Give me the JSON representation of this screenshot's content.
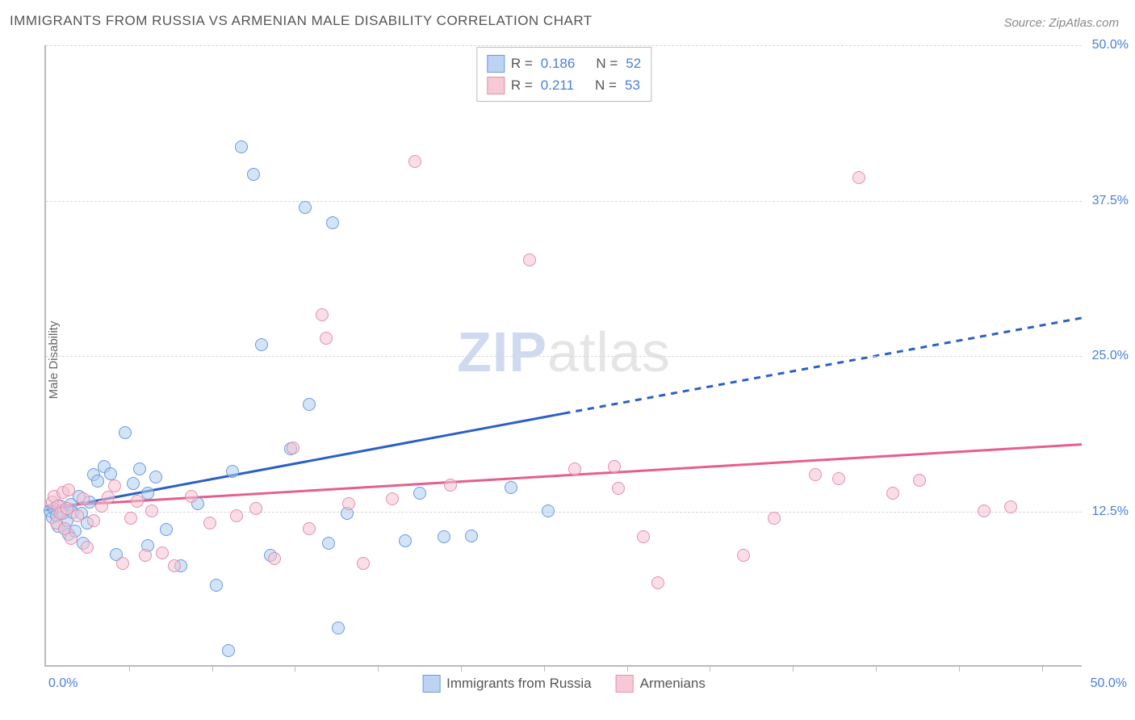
{
  "title": "IMMIGRANTS FROM RUSSIA VS ARMENIAN MALE DISABILITY CORRELATION CHART",
  "source": "Source: ZipAtlas.com",
  "ylabel": "Male Disability",
  "watermark": {
    "zip": "ZIP",
    "atlas": "atlas"
  },
  "chart": {
    "type": "scatter",
    "xlim": [
      0,
      50
    ],
    "ylim": [
      0,
      50
    ],
    "y_ticks": [
      12.5,
      25.0,
      37.5,
      50.0
    ],
    "y_tick_labels": [
      "12.5%",
      "25.0%",
      "37.5%",
      "50.0%"
    ],
    "x_minor_ticks": [
      4,
      8,
      12,
      16,
      20,
      24,
      28,
      32,
      36,
      40,
      44,
      48
    ],
    "x_start_label": "0.0%",
    "x_end_label": "50.0%",
    "background_color": "#ffffff",
    "grid_color": "#d8d8d8",
    "axis_color": "#bbbbbb",
    "label_color": "#4a7fd8",
    "marker_radius": 8
  },
  "legend_top": {
    "rows": [
      {
        "swatch_fill": "#bcd3f2",
        "swatch_border": "#6a9be0",
        "r_label": "R =",
        "r_val": "0.186",
        "n_label": "N =",
        "n_val": "52"
      },
      {
        "swatch_fill": "#f6c9d7",
        "swatch_border": "#e48fad",
        "r_label": "R =",
        "r_val": "0.211",
        "n_label": "N =",
        "n_val": "53"
      }
    ]
  },
  "legend_bottom": {
    "items": [
      {
        "swatch_fill": "#bcd3f2",
        "swatch_border": "#6a9be0",
        "label": "Immigrants from Russia"
      },
      {
        "swatch_fill": "#f6c9d7",
        "swatch_border": "#e48fad",
        "label": "Armenians"
      }
    ]
  },
  "series": [
    {
      "name": "Immigrants from Russia",
      "point_fill": "rgba(174,205,240,0.55)",
      "point_stroke": "#6a9be0",
      "trend_color": "#2b5fc7",
      "trend_solid": {
        "x1": 0,
        "y1": 12.5,
        "x2": 25,
        "y2": 20.3
      },
      "trend_dashed": {
        "x1": 25,
        "y1": 20.3,
        "x2": 50,
        "y2": 28.0
      },
      "points": [
        [
          0.2,
          12.4
        ],
        [
          0.3,
          11.9
        ],
        [
          0.4,
          12.6
        ],
        [
          0.5,
          12.0
        ],
        [
          0.6,
          11.2
        ],
        [
          0.7,
          12.8
        ],
        [
          0.8,
          12.2
        ],
        [
          0.9,
          11.0
        ],
        [
          1.0,
          11.6
        ],
        [
          1.1,
          10.5
        ],
        [
          1.2,
          12.9
        ],
        [
          1.3,
          12.3
        ],
        [
          1.4,
          10.8
        ],
        [
          1.6,
          13.6
        ],
        [
          1.7,
          12.2
        ],
        [
          1.8,
          9.8
        ],
        [
          2.0,
          11.4
        ],
        [
          2.1,
          13.1
        ],
        [
          2.3,
          15.3
        ],
        [
          2.5,
          14.8
        ],
        [
          2.8,
          16.0
        ],
        [
          3.1,
          15.4
        ],
        [
          3.4,
          8.9
        ],
        [
          3.8,
          18.7
        ],
        [
          4.2,
          14.6
        ],
        [
          4.5,
          15.8
        ],
        [
          4.9,
          9.6
        ],
        [
          4.9,
          13.8
        ],
        [
          5.3,
          15.1
        ],
        [
          5.8,
          10.9
        ],
        [
          6.5,
          8.0
        ],
        [
          7.3,
          13.0
        ],
        [
          8.2,
          6.4
        ],
        [
          8.8,
          1.2
        ],
        [
          9.0,
          15.6
        ],
        [
          9.4,
          41.7
        ],
        [
          10.0,
          39.5
        ],
        [
          10.4,
          25.8
        ],
        [
          10.8,
          8.8
        ],
        [
          11.8,
          17.4
        ],
        [
          12.5,
          36.8
        ],
        [
          12.7,
          21.0
        ],
        [
          13.6,
          9.8
        ],
        [
          13.8,
          35.6
        ],
        [
          14.1,
          3.0
        ],
        [
          14.5,
          12.2
        ],
        [
          17.3,
          10.0
        ],
        [
          18.0,
          13.8
        ],
        [
          19.2,
          10.3
        ],
        [
          20.5,
          10.4
        ],
        [
          22.4,
          14.3
        ],
        [
          24.2,
          12.4
        ]
      ]
    },
    {
      "name": "Armenians",
      "point_fill": "rgba(244,194,210,0.55)",
      "point_stroke": "#e48fad",
      "trend_color": "#e65f8a",
      "trend_solid": {
        "x1": 0,
        "y1": 12.8,
        "x2": 50,
        "y2": 17.8
      },
      "trend_dashed": null,
      "points": [
        [
          0.3,
          13.1
        ],
        [
          0.4,
          13.6
        ],
        [
          0.5,
          11.4
        ],
        [
          0.6,
          12.8
        ],
        [
          0.7,
          12.2
        ],
        [
          0.8,
          13.9
        ],
        [
          0.9,
          11.0
        ],
        [
          1.0,
          12.6
        ],
        [
          1.1,
          14.1
        ],
        [
          1.2,
          10.2
        ],
        [
          1.5,
          12.0
        ],
        [
          1.8,
          13.4
        ],
        [
          2.0,
          9.5
        ],
        [
          2.3,
          11.6
        ],
        [
          2.7,
          12.8
        ],
        [
          3.0,
          13.5
        ],
        [
          3.3,
          14.4
        ],
        [
          3.7,
          8.2
        ],
        [
          4.1,
          11.8
        ],
        [
          4.4,
          13.2
        ],
        [
          4.8,
          8.8
        ],
        [
          5.1,
          12.4
        ],
        [
          5.6,
          9.0
        ],
        [
          6.2,
          8.0
        ],
        [
          7.0,
          13.6
        ],
        [
          7.9,
          11.4
        ],
        [
          9.2,
          12.0
        ],
        [
          10.1,
          12.6
        ],
        [
          11.0,
          8.6
        ],
        [
          11.9,
          17.5
        ],
        [
          12.7,
          11.0
        ],
        [
          13.3,
          28.2
        ],
        [
          13.5,
          26.3
        ],
        [
          14.6,
          13.0
        ],
        [
          15.3,
          8.2
        ],
        [
          16.7,
          13.4
        ],
        [
          17.8,
          40.5
        ],
        [
          19.5,
          14.5
        ],
        [
          23.3,
          32.6
        ],
        [
          25.5,
          15.8
        ],
        [
          27.4,
          16.0
        ],
        [
          27.6,
          14.2
        ],
        [
          28.8,
          10.3
        ],
        [
          29.5,
          6.6
        ],
        [
          33.6,
          8.8
        ],
        [
          35.1,
          11.8
        ],
        [
          37.1,
          15.3
        ],
        [
          38.2,
          15.0
        ],
        [
          39.2,
          39.2
        ],
        [
          40.8,
          13.8
        ],
        [
          42.1,
          14.9
        ],
        [
          45.2,
          12.4
        ],
        [
          46.5,
          12.7
        ]
      ]
    }
  ]
}
